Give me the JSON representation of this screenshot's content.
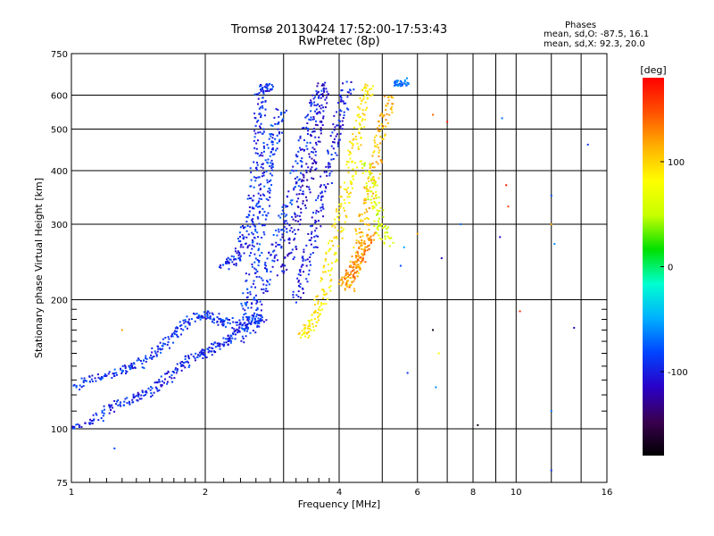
{
  "header": {
    "title_line1": "Tromsø 20130424 17:52:00-17:53:43",
    "title_line2": "RwPretec (8p)",
    "stats_title": "Phases",
    "stats_o": "mean, sd,O: -87.5, 16.1",
    "stats_x": "mean, sd,X:  92.3, 20.0"
  },
  "chart_data": {
    "type": "scatter",
    "xlabel": "Frequency [MHz]",
    "ylabel": "Stationary phase Virtual Height [km]",
    "xscale": "log",
    "yscale": "log",
    "xlim": [
      1,
      16
    ],
    "ylim": [
      75,
      750
    ],
    "x_ticks": [
      1,
      2,
      4,
      6,
      8,
      10,
      16
    ],
    "x_tick_labels": [
      "1",
      "2",
      "4",
      "6",
      "8",
      "10",
      "16"
    ],
    "x_minor_ticks": [
      3,
      5,
      7,
      9,
      12,
      14
    ],
    "y_ticks": [
      75,
      100,
      200,
      300,
      400,
      500,
      600,
      750
    ],
    "y_tick_labels": [
      "75",
      "100",
      "200",
      "300",
      "400",
      "500",
      "600",
      "750"
    ],
    "grid": true,
    "colorbar": {
      "label": "[deg]",
      "range": [
        -180,
        180
      ],
      "tick_values": [
        100,
        0,
        -100
      ],
      "tick_labels": [
        "100",
        "0",
        "-100"
      ],
      "colors": [
        "#000000",
        "#3a0050",
        "#2a00c8",
        "#0044ff",
        "#00b0ff",
        "#00ffd0",
        "#00e000",
        "#c8ff00",
        "#ffff00",
        "#ffb000",
        "#ff5000",
        "#ff0000"
      ]
    },
    "traces": [
      {
        "phase": -95,
        "points": [
          [
            1.0,
            101
          ],
          [
            1.1,
            103
          ],
          [
            1.2,
            110
          ],
          [
            1.3,
            115
          ],
          [
            1.4,
            118
          ],
          [
            1.5,
            122
          ],
          [
            1.6,
            128
          ],
          [
            1.7,
            135
          ],
          [
            1.8,
            142
          ],
          [
            1.9,
            148
          ],
          [
            2.0,
            150
          ],
          [
            2.1,
            155
          ],
          [
            2.2,
            158
          ],
          [
            2.3,
            165
          ],
          [
            2.4,
            172
          ],
          [
            2.5,
            178
          ],
          [
            2.6,
            180
          ],
          [
            2.7,
            182
          ]
        ]
      },
      {
        "phase": -90,
        "points": [
          [
            1.0,
            125
          ],
          [
            1.1,
            130
          ],
          [
            1.2,
            133
          ],
          [
            1.3,
            137
          ],
          [
            1.4,
            140
          ],
          [
            1.5,
            146
          ],
          [
            1.6,
            155
          ],
          [
            1.7,
            165
          ],
          [
            1.8,
            175
          ],
          [
            1.9,
            182
          ],
          [
            2.0,
            185
          ],
          [
            2.1,
            182
          ],
          [
            2.2,
            176
          ],
          [
            2.3,
            180
          ]
        ]
      },
      {
        "phase": -95,
        "points": [
          [
            2.2,
            240
          ],
          [
            2.3,
            245
          ],
          [
            2.4,
            255
          ],
          [
            2.45,
            275
          ],
          [
            2.5,
            300
          ],
          [
            2.55,
            330
          ],
          [
            2.6,
            370
          ],
          [
            2.62,
            420
          ],
          [
            2.64,
            480
          ],
          [
            2.65,
            540
          ],
          [
            2.66,
            600
          ],
          [
            2.7,
            630
          ],
          [
            2.8,
            620
          ]
        ]
      },
      {
        "phase": -88,
        "points": [
          [
            2.4,
            160
          ],
          [
            2.45,
            180
          ],
          [
            2.5,
            200
          ],
          [
            2.55,
            230
          ],
          [
            2.6,
            260
          ],
          [
            2.65,
            290
          ],
          [
            2.7,
            330
          ],
          [
            2.75,
            380
          ],
          [
            2.8,
            420
          ],
          [
            2.85,
            460
          ],
          [
            2.9,
            500
          ],
          [
            2.95,
            560
          ]
        ]
      },
      {
        "phase": -92,
        "points": [
          [
            2.55,
            165
          ],
          [
            2.6,
            190
          ],
          [
            2.7,
            215
          ],
          [
            2.8,
            245
          ],
          [
            2.9,
            270
          ],
          [
            3.0,
            300
          ],
          [
            3.1,
            340
          ],
          [
            3.2,
            390
          ],
          [
            3.3,
            440
          ],
          [
            3.4,
            500
          ],
          [
            3.5,
            560
          ],
          [
            3.6,
            620
          ]
        ]
      },
      {
        "phase": -110,
        "points": [
          [
            3.0,
            230
          ],
          [
            3.1,
            260
          ],
          [
            3.2,
            300
          ],
          [
            3.3,
            340
          ],
          [
            3.4,
            380
          ],
          [
            3.5,
            420
          ],
          [
            3.55,
            480
          ],
          [
            3.6,
            540
          ],
          [
            3.65,
            600
          ],
          [
            3.7,
            640
          ]
        ]
      },
      {
        "phase": -100,
        "points": [
          [
            3.2,
            200
          ],
          [
            3.3,
            225
          ],
          [
            3.4,
            250
          ],
          [
            3.5,
            280
          ],
          [
            3.6,
            320
          ],
          [
            3.7,
            360
          ],
          [
            3.8,
            410
          ],
          [
            3.9,
            470
          ],
          [
            4.0,
            520
          ],
          [
            4.1,
            580
          ],
          [
            4.2,
            640
          ]
        ]
      },
      {
        "phase": 90,
        "points": [
          [
            3.3,
            165
          ],
          [
            3.4,
            170
          ],
          [
            3.5,
            180
          ],
          [
            3.6,
            190
          ],
          [
            3.7,
            210
          ],
          [
            3.8,
            240
          ],
          [
            3.9,
            270
          ],
          [
            4.0,
            300
          ],
          [
            4.1,
            340
          ],
          [
            4.2,
            380
          ],
          [
            4.3,
            430
          ],
          [
            4.4,
            480
          ],
          [
            4.5,
            540
          ],
          [
            4.6,
            600
          ],
          [
            4.7,
            640
          ]
        ]
      },
      {
        "phase": 110,
        "points": [
          [
            4.2,
            210
          ],
          [
            4.3,
            230
          ],
          [
            4.4,
            260
          ],
          [
            4.5,
            290
          ],
          [
            4.6,
            320
          ],
          [
            4.7,
            360
          ],
          [
            4.8,
            400
          ],
          [
            4.9,
            450
          ],
          [
            5.0,
            500
          ],
          [
            5.1,
            550
          ],
          [
            5.2,
            600
          ]
        ]
      },
      {
        "phase": 130,
        "points": [
          [
            4.1,
            215
          ],
          [
            4.2,
            225
          ],
          [
            4.3,
            235
          ],
          [
            4.4,
            245
          ],
          [
            4.5,
            255
          ],
          [
            4.6,
            270
          ],
          [
            4.7,
            285
          ]
        ]
      },
      {
        "phase": 60,
        "points": [
          [
            4.6,
            420
          ],
          [
            4.7,
            380
          ],
          [
            4.8,
            340
          ],
          [
            4.9,
            310
          ],
          [
            5.0,
            290
          ],
          [
            5.2,
            270
          ]
        ]
      },
      {
        "phase": -70,
        "points": [
          [
            5.4,
            640
          ],
          [
            5.5,
            640
          ],
          [
            5.6,
            645
          ]
        ]
      }
    ],
    "scatter_points": [
      {
        "x": 6.5,
        "y": 540,
        "phase": 140
      },
      {
        "x": 7.0,
        "y": 520,
        "phase": 170
      },
      {
        "x": 9.3,
        "y": 530,
        "phase": -70
      },
      {
        "x": 14.5,
        "y": 460,
        "phase": -90
      },
      {
        "x": 9.5,
        "y": 370,
        "phase": 170
      },
      {
        "x": 9.6,
        "y": 330,
        "phase": 150
      },
      {
        "x": 12.0,
        "y": 350,
        "phase": -80
      },
      {
        "x": 12.0,
        "y": 300,
        "phase": 120
      },
      {
        "x": 12.2,
        "y": 270,
        "phase": -60
      },
      {
        "x": 9.2,
        "y": 280,
        "phase": -110
      },
      {
        "x": 7.5,
        "y": 300,
        "phase": -70
      },
      {
        "x": 6.8,
        "y": 250,
        "phase": -120
      },
      {
        "x": 6.5,
        "y": 170,
        "phase": -170
      },
      {
        "x": 6.7,
        "y": 150,
        "phase": 80
      },
      {
        "x": 8.2,
        "y": 102,
        "phase": -170
      },
      {
        "x": 12.0,
        "y": 110,
        "phase": -70
      },
      {
        "x": 12.0,
        "y": 80,
        "phase": -90
      },
      {
        "x": 13.5,
        "y": 172,
        "phase": -120
      },
      {
        "x": 10.2,
        "y": 188,
        "phase": 160
      },
      {
        "x": 6.6,
        "y": 125,
        "phase": -60
      },
      {
        "x": 5.7,
        "y": 135,
        "phase": -90
      },
      {
        "x": 5.6,
        "y": 265,
        "phase": -50
      },
      {
        "x": 6.0,
        "y": 285,
        "phase": 120
      },
      {
        "x": 5.5,
        "y": 240,
        "phase": -80
      },
      {
        "x": 1.25,
        "y": 90,
        "phase": -80
      },
      {
        "x": 1.3,
        "y": 170,
        "phase": 120
      }
    ]
  }
}
